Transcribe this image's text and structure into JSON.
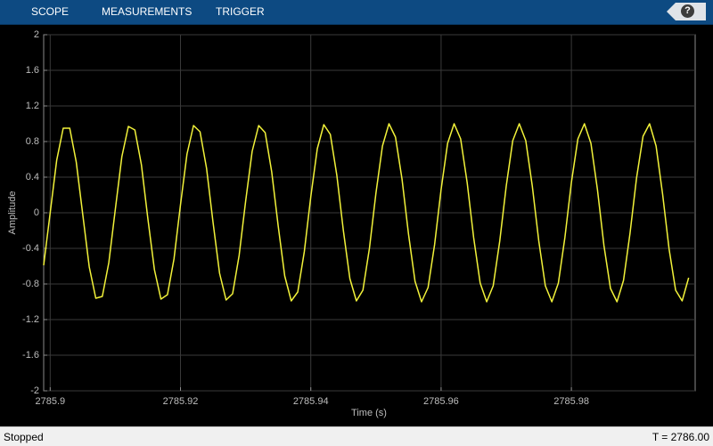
{
  "toolbar": {
    "tabs": [
      "SCOPE",
      "MEASUREMENTS",
      "TRIGGER"
    ],
    "help": "?"
  },
  "status": {
    "left": "Stopped",
    "right": "T = 2786.00"
  },
  "chart_data": {
    "type": "line",
    "xlabel": "Time (s)",
    "ylabel": "Amplitude",
    "color": "#f2f23a",
    "grid": true,
    "xlim": [
      2785.899,
      2785.999
    ],
    "xticks": [
      2785.9,
      2785.92,
      2785.94,
      2785.96,
      2785.98
    ],
    "ylim": [
      -2,
      2
    ],
    "yticks": [
      -2,
      -1.6,
      -1.2,
      -0.8,
      -0.4,
      0,
      0.4,
      0.8,
      1.2,
      1.6,
      2
    ],
    "x": [
      2785.899,
      2785.9,
      2785.901,
      2785.902,
      2785.903,
      2785.904,
      2785.905,
      2785.906,
      2785.907,
      2785.908,
      2785.909,
      2785.91,
      2785.911,
      2785.912,
      2785.913,
      2785.914,
      2785.915,
      2785.916,
      2785.917,
      2785.918,
      2785.919,
      2785.92,
      2785.921,
      2785.922,
      2785.923,
      2785.924,
      2785.925,
      2785.926,
      2785.927,
      2785.928,
      2785.929,
      2785.93,
      2785.931,
      2785.932,
      2785.933,
      2785.934,
      2785.935,
      2785.936,
      2785.937,
      2785.938,
      2785.939,
      2785.94,
      2785.941,
      2785.942,
      2785.943,
      2785.944,
      2785.945,
      2785.946,
      2785.947,
      2785.948,
      2785.949,
      2785.95,
      2785.951,
      2785.952,
      2785.953,
      2785.954,
      2785.955,
      2785.956,
      2785.957,
      2785.958,
      2785.959,
      2785.96,
      2785.961,
      2785.962,
      2785.963,
      2785.964,
      2785.965,
      2785.966,
      2785.967,
      2785.968,
      2785.969,
      2785.97,
      2785.971,
      2785.972,
      2785.973,
      2785.974,
      2785.975,
      2785.976,
      2785.977,
      2785.978,
      2785.979,
      2785.98,
      2785.981,
      2785.982,
      2785.983,
      2785.984,
      2785.985,
      2785.986,
      2785.987,
      2785.988,
      2785.989,
      2785.99,
      2785.991,
      2785.992,
      2785.993,
      2785.994,
      2785.995,
      2785.996,
      2785.997,
      2785.998
    ],
    "values": [
      -0.59,
      0,
      0.59,
      0.95,
      0.95,
      0.57,
      -0.02,
      -0.61,
      -0.96,
      -0.94,
      -0.56,
      0.04,
      0.63,
      0.97,
      0.93,
      0.54,
      -0.07,
      -0.64,
      -0.97,
      -0.92,
      -0.52,
      0.09,
      0.66,
      0.98,
      0.91,
      0.5,
      -0.11,
      -0.68,
      -0.98,
      -0.91,
      -0.48,
      0.13,
      0.69,
      0.98,
      0.9,
      0.46,
      -0.15,
      -0.71,
      -0.99,
      -0.89,
      -0.44,
      0.18,
      0.72,
      0.99,
      0.88,
      0.42,
      -0.2,
      -0.74,
      -0.99,
      -0.87,
      -0.4,
      0.22,
      0.75,
      1.0,
      0.85,
      0.38,
      -0.24,
      -0.77,
      -1.0,
      -0.84,
      -0.36,
      0.26,
      0.78,
      1.0,
      0.83,
      0.34,
      -0.28,
      -0.79,
      -1.0,
      -0.82,
      -0.32,
      0.3,
      0.81,
      1.0,
      0.81,
      0.3,
      -0.32,
      -0.82,
      -1.0,
      -0.79,
      -0.28,
      0.34,
      0.83,
      1.0,
      0.78,
      0.26,
      -0.37,
      -0.85,
      -1.0,
      -0.76,
      -0.23,
      0.39,
      0.86,
      1.0,
      0.75,
      0.21,
      -0.41,
      -0.87,
      -0.99,
      -0.73
    ]
  }
}
